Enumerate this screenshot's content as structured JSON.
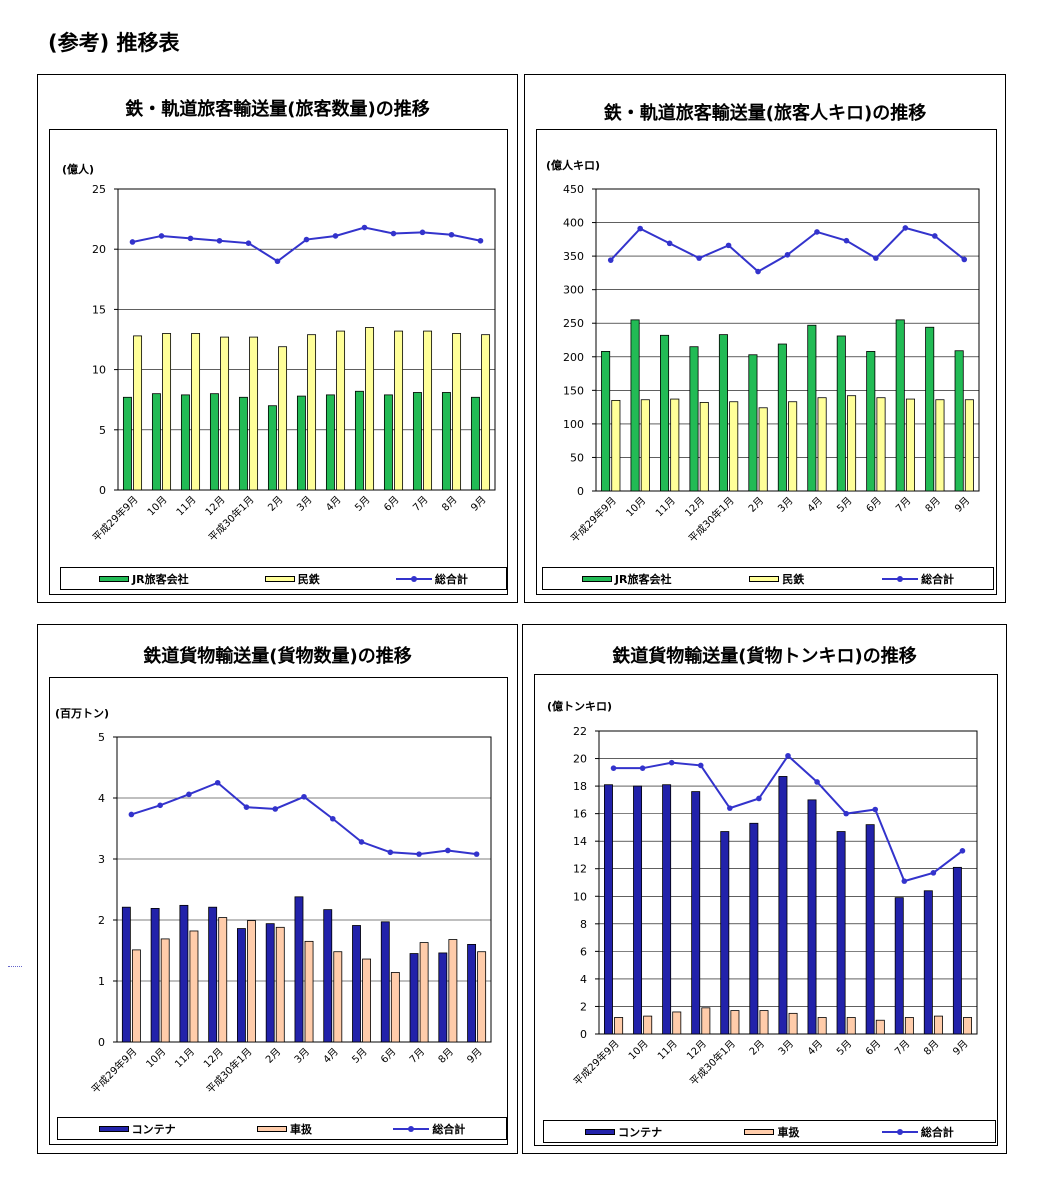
{
  "page_title": "(参考) 推移表",
  "chart_data": [
    {
      "type": "bar",
      "title": "鉄・軌道旅客輸送量(旅客数量)の推移",
      "ylabel": "(億人)",
      "ylim": [
        0,
        25
      ],
      "yticks": [
        0,
        5,
        10,
        15,
        20,
        25
      ],
      "categories": [
        "平成29年9月",
        "10月",
        "11月",
        "12月",
        "平成30年1月",
        "2月",
        "3月",
        "4月",
        "5月",
        "6月",
        "7月",
        "8月",
        "9月"
      ],
      "series": [
        {
          "name": "JR旅客会社",
          "kind": "bar",
          "color": "#22bb55",
          "values": [
            7.7,
            8.0,
            7.9,
            8.0,
            7.7,
            7.0,
            7.8,
            7.9,
            8.2,
            7.9,
            8.1,
            8.1,
            7.7
          ]
        },
        {
          "name": "民鉄",
          "kind": "bar",
          "color": "#ffff99",
          "values": [
            12.8,
            13.0,
            13.0,
            12.7,
            12.7,
            11.9,
            12.9,
            13.2,
            13.5,
            13.2,
            13.2,
            13.0,
            12.9
          ]
        },
        {
          "name": "総合計",
          "kind": "line",
          "color": "#3333cc",
          "values": [
            20.6,
            21.1,
            20.9,
            20.7,
            20.5,
            19.0,
            20.8,
            21.1,
            21.8,
            21.3,
            21.4,
            21.2,
            20.7
          ]
        }
      ],
      "grid": true,
      "legend": "bottom"
    },
    {
      "type": "bar",
      "title": "鉄・軌道旅客輸送量(旅客人キロ)の推移",
      "ylabel": "(億人キロ)",
      "ylim": [
        0,
        450
      ],
      "yticks": [
        0,
        50,
        100,
        150,
        200,
        250,
        300,
        350,
        400,
        450
      ],
      "categories": [
        "平成29年9月",
        "10月",
        "11月",
        "12月",
        "平成30年1月",
        "2月",
        "3月",
        "4月",
        "5月",
        "6月",
        "7月",
        "8月",
        "9月"
      ],
      "series": [
        {
          "name": "JR旅客会社",
          "kind": "bar",
          "color": "#22bb55",
          "values": [
            208,
            255,
            232,
            215,
            233,
            203,
            219,
            247,
            231,
            208,
            255,
            244,
            209
          ]
        },
        {
          "name": "民鉄",
          "kind": "bar",
          "color": "#ffff99",
          "values": [
            135,
            136,
            137,
            132,
            133,
            124,
            133,
            139,
            142,
            139,
            137,
            136,
            136
          ]
        },
        {
          "name": "総合計",
          "kind": "line",
          "color": "#3333cc",
          "values": [
            344,
            391,
            369,
            347,
            366,
            327,
            352,
            386,
            373,
            347,
            392,
            380,
            345
          ]
        }
      ],
      "grid": true,
      "legend": "bottom"
    },
    {
      "type": "bar",
      "title": "鉄道貨物輸送量(貨物数量)の推移",
      "ylabel": "(百万トン)",
      "ylim": [
        0,
        5
      ],
      "yticks": [
        0,
        1,
        2,
        3,
        4,
        5
      ],
      "categories": [
        "平成29年9月",
        "10月",
        "11月",
        "12月",
        "平成30年1月",
        "2月",
        "3月",
        "4月",
        "5月",
        "6月",
        "7月",
        "8月",
        "9月"
      ],
      "series": [
        {
          "name": "コンテナ",
          "kind": "bar",
          "color": "#2222aa",
          "values": [
            2.21,
            2.19,
            2.24,
            2.21,
            1.86,
            1.94,
            2.38,
            2.17,
            1.91,
            1.97,
            1.45,
            1.46,
            1.6
          ]
        },
        {
          "name": "車扱",
          "kind": "bar",
          "color": "#ffccaa",
          "values": [
            1.51,
            1.69,
            1.82,
            2.04,
            1.99,
            1.88,
            1.65,
            1.48,
            1.36,
            1.14,
            1.63,
            1.68,
            1.48
          ]
        },
        {
          "name": "総合計",
          "kind": "line",
          "color": "#3333cc",
          "values": [
            3.73,
            3.88,
            4.06,
            4.25,
            3.85,
            3.82,
            4.02,
            3.66,
            3.28,
            3.11,
            3.08,
            3.14,
            3.08
          ]
        }
      ],
      "grid": true,
      "legend": "bottom"
    },
    {
      "type": "bar",
      "title": "鉄道貨物輸送量(貨物トンキロ)の推移",
      "ylabel": "(億トンキロ)",
      "ylim": [
        0,
        22
      ],
      "yticks": [
        0,
        2,
        4,
        6,
        8,
        10,
        12,
        14,
        16,
        18,
        20,
        22
      ],
      "categories": [
        "平成29年9月",
        "10月",
        "11月",
        "12月",
        "平成30年1月",
        "2月",
        "3月",
        "4月",
        "5月",
        "6月",
        "7月",
        "8月",
        "9月"
      ],
      "series": [
        {
          "name": "コンテナ",
          "kind": "bar",
          "color": "#2222aa",
          "values": [
            18.1,
            18.0,
            18.1,
            17.6,
            14.7,
            15.3,
            18.7,
            17.0,
            14.7,
            15.2,
            9.9,
            10.4,
            12.1
          ]
        },
        {
          "name": "車扱",
          "kind": "bar",
          "color": "#ffccaa",
          "values": [
            1.2,
            1.3,
            1.6,
            1.9,
            1.7,
            1.7,
            1.5,
            1.2,
            1.2,
            1.0,
            1.2,
            1.3,
            1.2
          ]
        },
        {
          "name": "総合計",
          "kind": "line",
          "color": "#3333cc",
          "values": [
            19.3,
            19.3,
            19.7,
            19.5,
            16.4,
            17.1,
            20.2,
            18.3,
            16.0,
            16.3,
            11.1,
            11.7,
            13.3
          ]
        }
      ],
      "grid": true,
      "legend": "bottom"
    }
  ]
}
